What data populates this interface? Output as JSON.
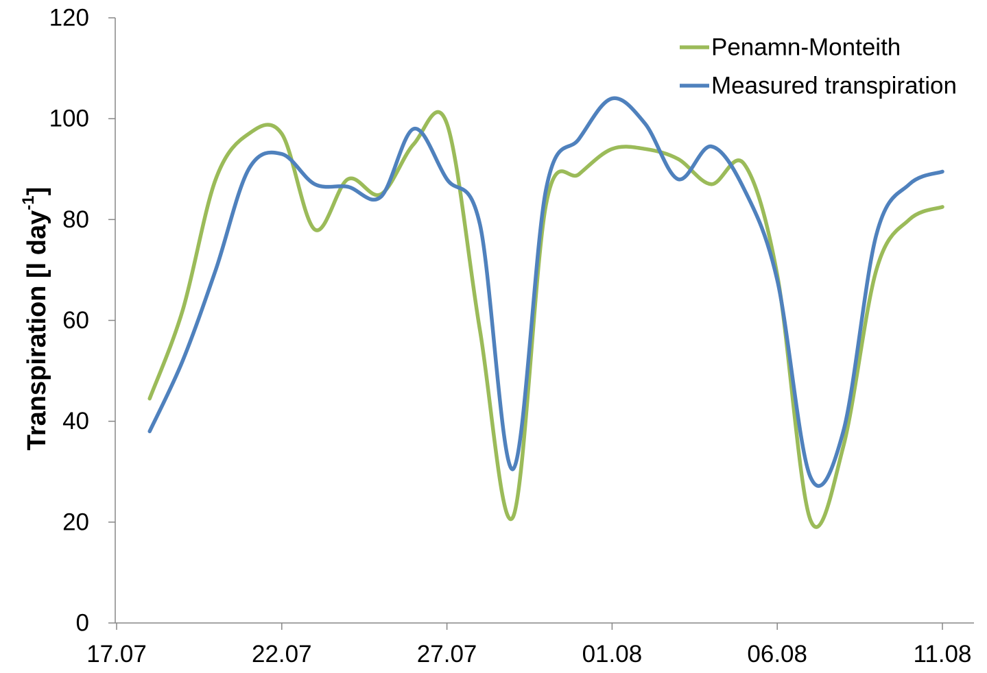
{
  "chart_data": {
    "type": "line",
    "xlabel": "",
    "ylabel": {
      "main": "Transpiration [l day",
      "sup": "-1",
      "close": "]"
    },
    "ylim": [
      0,
      120
    ],
    "yticks": [
      0,
      20,
      40,
      60,
      80,
      100,
      120
    ],
    "xlim_days": [
      0,
      25
    ],
    "xtick_labels": [
      "17.07",
      "22.07",
      "27.07",
      "01.08",
      "06.08",
      "11.08"
    ],
    "xtick_days": [
      0,
      5,
      10,
      15,
      20,
      25
    ],
    "x_dates": [
      "18.07",
      "19.07",
      "20.07",
      "21.07",
      "22.07",
      "23.07",
      "24.07",
      "25.07",
      "26.07",
      "27.07",
      "28.07",
      "29.07",
      "30.07",
      "31.07",
      "01.08",
      "02.08",
      "03.08",
      "04.08",
      "05.08",
      "06.08",
      "07.08",
      "08.08",
      "09.08",
      "10.08",
      "11.08"
    ],
    "grid": false,
    "legend_position": "top-right",
    "series": [
      {
        "name": "Penamn-Monteith",
        "color": "#9bbb59",
        "values": [
          44.5,
          62,
          88,
          97,
          97,
          78,
          88,
          85,
          95,
          99,
          58,
          21,
          83,
          89,
          94,
          94,
          92,
          87,
          91,
          69,
          20.5,
          35,
          70,
          80,
          82.5
        ]
      },
      {
        "name": "Measured transpiration",
        "color": "#4f81bd",
        "values": [
          38,
          52,
          70,
          90,
          93,
          87,
          86.5,
          84.5,
          98,
          88,
          79,
          30.5,
          86,
          96,
          104,
          99,
          88,
          94.5,
          86,
          68,
          29,
          38,
          77,
          87,
          89.5
        ]
      }
    ]
  }
}
